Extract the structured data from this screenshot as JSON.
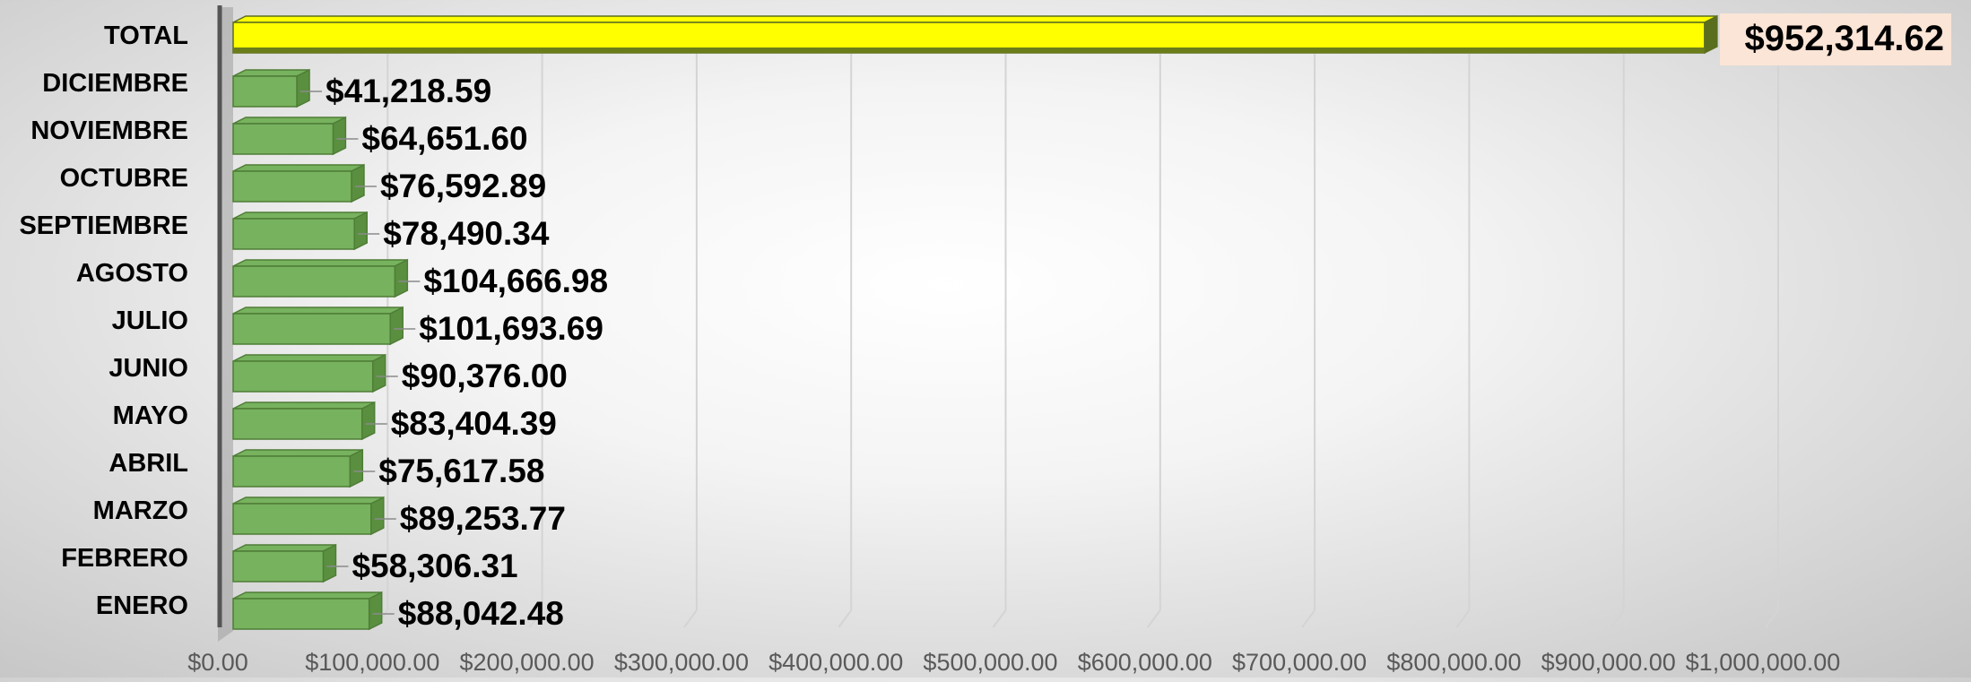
{
  "chart_data": {
    "type": "bar",
    "orientation": "horizontal",
    "categories": [
      "TOTAL",
      "DICIEMBRE",
      "NOVIEMBRE",
      "OCTUBRE",
      "SEPTIEMBRE",
      "AGOSTO",
      "JULIO",
      "JUNIO",
      "MAYO",
      "ABRIL",
      "MARZO",
      "FEBRERO",
      "ENERO"
    ],
    "values": [
      952314.62,
      41218.59,
      64651.6,
      76592.89,
      78490.34,
      104666.98,
      101693.69,
      90376.0,
      83404.39,
      75617.58,
      89253.77,
      58306.31,
      88042.48
    ],
    "data_labels": [
      "$952,314.62",
      "$41,218.59",
      "$64,651.60",
      "$76,592.89",
      "$78,490.34",
      "$104,666.98",
      "$101,693.69",
      "$90,376.00",
      "$83,404.39",
      "$75,617.58",
      "$89,253.77",
      "$58,306.31",
      "$88,042.48"
    ],
    "xlim": [
      0,
      1000000
    ],
    "x_ticks": [
      0,
      100000,
      200000,
      300000,
      400000,
      500000,
      600000,
      700000,
      800000,
      900000,
      1000000
    ],
    "x_tick_labels": [
      "$0.00",
      "$100,000.00",
      "$200,000.00",
      "$300,000.00",
      "$400,000.00",
      "$500,000.00",
      "$600,000.00",
      "$700,000.00",
      "$800,000.00",
      "$900,000.00",
      "$1,000,000.00"
    ],
    "title": "",
    "xlabel": "",
    "ylabel": "",
    "grid": true,
    "legend": "none",
    "style": "3d",
    "colors": {
      "bar": "#77b25e",
      "bar_edge": "#4f7d36",
      "bar_side": "#5a8f40",
      "total_bar": "#ffff00",
      "total_bar_edge": "#5a6e1e",
      "total_label_bg": "#fbe5d6",
      "wall": "#9e9e9e",
      "axis": "#555555",
      "gridline": "#d4d4d4",
      "text": "#000000",
      "tick_text": "#595959"
    }
  }
}
